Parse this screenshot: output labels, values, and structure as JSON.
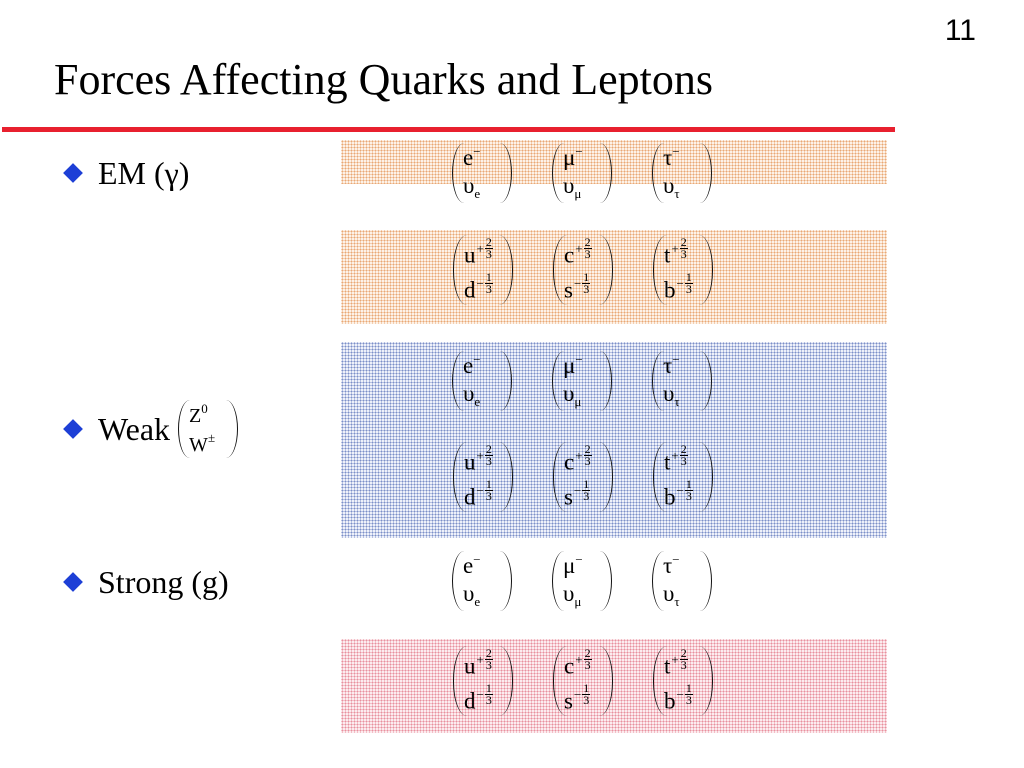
{
  "slide_number": "11",
  "title": "Forces Affecting Quarks and Leptons",
  "bullets": {
    "em": "EM (γ)",
    "weak": "Weak",
    "strong": "Strong (g)"
  },
  "weak_bosons": {
    "top": "Z",
    "top_sup": "0",
    "bottom": "W",
    "bottom_sup": "±"
  },
  "leptons": [
    {
      "top": "e",
      "top_sup": "−",
      "bottom": "υ",
      "bottom_sub": "e"
    },
    {
      "top": "μ",
      "top_sup": "−",
      "bottom": "υ",
      "bottom_sub": "μ"
    },
    {
      "top": "τ",
      "top_sup": "−",
      "bottom": "υ",
      "bottom_sub": "τ"
    }
  ],
  "quarks": [
    {
      "top": "u",
      "top_sign": "+",
      "top_num": "2",
      "top_den": "3",
      "bottom": "d",
      "bottom_sign": "−",
      "bottom_num": "1",
      "bottom_den": "3"
    },
    {
      "top": "c",
      "top_sign": "+",
      "top_num": "2",
      "top_den": "3",
      "bottom": "s",
      "bottom_sign": "−",
      "bottom_num": "1",
      "bottom_den": "3"
    },
    {
      "top": "t",
      "top_sign": "+",
      "top_num": "2",
      "top_den": "3",
      "bottom": "b",
      "bottom_sign": "−",
      "bottom_num": "1",
      "bottom_den": "3"
    }
  ],
  "colors": {
    "title_rule": "#e8202f",
    "bullet_diamond": "#1d3fd6",
    "em_band": "#e9a875",
    "weak_band": "#7c90c8",
    "strong_band": "#e8909e"
  }
}
